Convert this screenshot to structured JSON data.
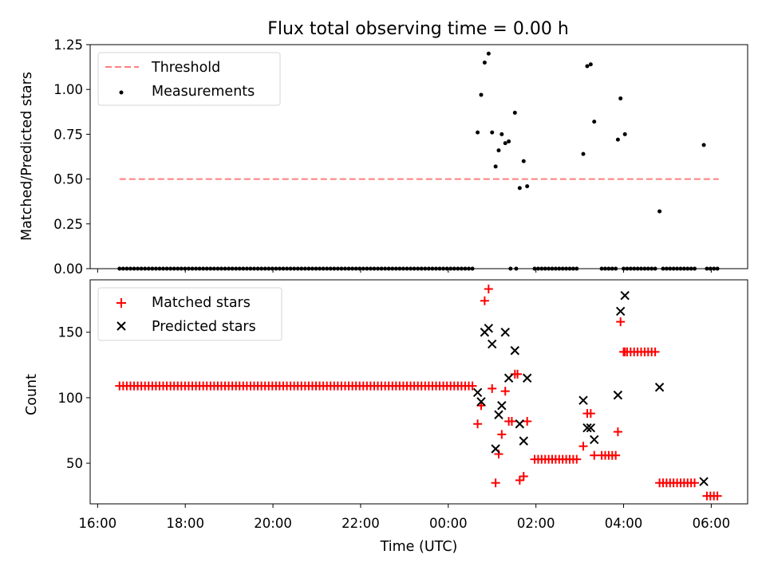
{
  "chart_data": {
    "type": "scatter",
    "title": "Flux total observing time = 0.00 h",
    "xlabel": "Time (UTC)",
    "x_unit": "hours since 16:00 UTC (axis shows clock times, wrapping past midnight)",
    "x_ticks": [
      {
        "label": "16:00",
        "x": 0
      },
      {
        "label": "18:00",
        "x": 2
      },
      {
        "label": "20:00",
        "x": 4
      },
      {
        "label": "22:00",
        "x": 6
      },
      {
        "label": "00:00",
        "x": 8
      },
      {
        "label": "02:00",
        "x": 10
      },
      {
        "label": "04:00",
        "x": 12
      },
      {
        "label": "06:00",
        "x": 14
      }
    ],
    "xlim": [
      -0.17,
      14.83
    ],
    "panels": [
      {
        "ylabel": "Matched/Predicted stars",
        "ylim": [
          0,
          1.25
        ],
        "y_ticks": [
          "0.00",
          "0.25",
          "0.50",
          "0.75",
          "1.00",
          "1.25"
        ],
        "y_tick_values": [
          0,
          0.25,
          0.5,
          0.75,
          1.0,
          1.25
        ],
        "legend": {
          "position": "upper-left",
          "entries": [
            "Threshold",
            "Measurements"
          ]
        },
        "series": [
          {
            "name": "Threshold",
            "kind": "dashed-line",
            "color": "#ff7f7f",
            "x": [
              0.5,
              14.17
            ],
            "y": [
              0.5,
              0.5
            ]
          },
          {
            "name": "Measurements",
            "kind": "dots",
            "color": "#000000",
            "zero_runs": [
              [
                0.5,
                8.58,
                0.083
              ],
              [
                9.42,
                9.42,
                1
              ],
              [
                9.55,
                9.55,
                1
              ],
              [
                9.97,
                11.0,
                0.08
              ],
              [
                11.5,
                11.88,
                0.08
              ],
              [
                12.0,
                12.75,
                0.08
              ],
              [
                12.9,
                13.67,
                0.08
              ],
              [
                13.9,
                14.17,
                0.08
              ]
            ],
            "points": [
              [
                8.67,
                0.76
              ],
              [
                8.75,
                0.97
              ],
              [
                8.83,
                1.15
              ],
              [
                8.92,
                1.2
              ],
              [
                9.0,
                0.76
              ],
              [
                9.08,
                0.57
              ],
              [
                9.15,
                0.66
              ],
              [
                9.22,
                0.75
              ],
              [
                9.3,
                0.7
              ],
              [
                9.38,
                0.71
              ],
              [
                9.52,
                0.87
              ],
              [
                9.63,
                0.45
              ],
              [
                9.72,
                0.6
              ],
              [
                9.8,
                0.46
              ],
              [
                11.08,
                0.64
              ],
              [
                11.17,
                1.13
              ],
              [
                11.25,
                1.14
              ],
              [
                11.33,
                0.82
              ],
              [
                11.87,
                0.72
              ],
              [
                11.93,
                0.95
              ],
              [
                12.03,
                0.75
              ],
              [
                12.82,
                0.32
              ],
              [
                13.83,
                0.69
              ]
            ]
          }
        ]
      },
      {
        "ylabel": "Count",
        "ylim": [
          19,
          190
        ],
        "y_ticks": [
          "50",
          "100",
          "150"
        ],
        "y_tick_values": [
          50,
          100,
          150
        ],
        "legend": {
          "position": "upper-left",
          "entries": [
            "Matched stars",
            "Predicted stars"
          ]
        },
        "series": [
          {
            "name": "Matched stars",
            "marker": "+",
            "color": "#ff0000",
            "runs": [
              [
                0.5,
                8.58,
                0.083,
                109
              ],
              [
                9.97,
                11.0,
                0.08,
                53
              ],
              [
                11.5,
                11.88,
                0.08,
                56
              ],
              [
                12.0,
                12.75,
                0.08,
                135
              ],
              [
                12.82,
                13.67,
                0.08,
                35
              ],
              [
                13.9,
                14.17,
                0.08,
                25
              ]
            ],
            "points": [
              [
                8.67,
                80
              ],
              [
                8.75,
                94
              ],
              [
                8.83,
                174
              ],
              [
                8.92,
                183
              ],
              [
                9.0,
                107
              ],
              [
                9.08,
                35
              ],
              [
                9.15,
                57
              ],
              [
                9.22,
                72
              ],
              [
                9.3,
                105
              ],
              [
                9.38,
                82
              ],
              [
                9.45,
                82
              ],
              [
                9.52,
                118
              ],
              [
                9.58,
                118
              ],
              [
                9.63,
                37
              ],
              [
                9.72,
                40
              ],
              [
                9.8,
                82
              ],
              [
                11.08,
                63
              ],
              [
                11.17,
                88
              ],
              [
                11.25,
                88
              ],
              [
                11.33,
                56
              ],
              [
                11.87,
                74
              ],
              [
                11.93,
                158
              ],
              [
                12.03,
                135
              ]
            ]
          },
          {
            "name": "Predicted stars",
            "marker": "x",
            "color": "#000000",
            "points": [
              [
                8.67,
                104
              ],
              [
                8.75,
                97
              ],
              [
                8.83,
                150
              ],
              [
                8.92,
                153
              ],
              [
                9.0,
                141
              ],
              [
                9.08,
                61
              ],
              [
                9.15,
                87
              ],
              [
                9.22,
                94
              ],
              [
                9.3,
                150
              ],
              [
                9.38,
                115
              ],
              [
                9.52,
                136
              ],
              [
                9.63,
                80
              ],
              [
                9.72,
                67
              ],
              [
                9.8,
                115
              ],
              [
                11.08,
                98
              ],
              [
                11.17,
                77
              ],
              [
                11.25,
                77
              ],
              [
                11.33,
                68
              ],
              [
                11.87,
                102
              ],
              [
                11.93,
                166
              ],
              [
                12.03,
                178
              ],
              [
                12.82,
                108
              ],
              [
                13.83,
                36
              ]
            ]
          }
        ]
      }
    ]
  }
}
